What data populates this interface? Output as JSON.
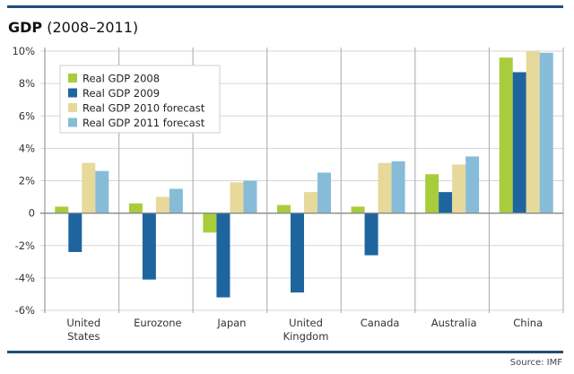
{
  "chart_data": {
    "type": "bar",
    "title_bold": "GDP",
    "title_rest": " (2008–2011)",
    "source": "Source: IMF",
    "xlabel": "",
    "ylabel": "",
    "ylim": [
      -6,
      10
    ],
    "yticks": [
      10,
      8,
      6,
      4,
      2,
      0,
      -2,
      -4,
      -6
    ],
    "ytick_labels": [
      "10%",
      "8%",
      "6%",
      "4%",
      "2%",
      "0",
      "-2%",
      "-4%",
      "-6%"
    ],
    "grid": true,
    "legend_position": "top-left",
    "categories": [
      [
        "United",
        "States"
      ],
      [
        "Eurozone"
      ],
      [
        "Japan"
      ],
      [
        "United",
        "Kingdom"
      ],
      [
        "Canada"
      ],
      [
        "Australia"
      ],
      [
        "China"
      ]
    ],
    "series": [
      {
        "name": "Real GDP 2008",
        "color": "#a8cc3c",
        "values": [
          0.4,
          0.6,
          -1.2,
          0.5,
          0.4,
          2.4,
          9.6
        ]
      },
      {
        "name": "Real GDP 2009",
        "color": "#1e65a0",
        "values": [
          -2.4,
          -4.1,
          -5.2,
          -4.9,
          -2.6,
          1.3,
          8.7
        ]
      },
      {
        "name": "Real GDP 2010 forecast",
        "color": "#e6d99a",
        "values": [
          3.1,
          1.0,
          1.9,
          1.3,
          3.1,
          3.0,
          10.0
        ]
      },
      {
        "name": "Real GDP 2011 forecast",
        "color": "#86bcd8",
        "values": [
          2.6,
          1.5,
          2.0,
          2.5,
          3.2,
          3.5,
          9.9
        ]
      }
    ]
  }
}
